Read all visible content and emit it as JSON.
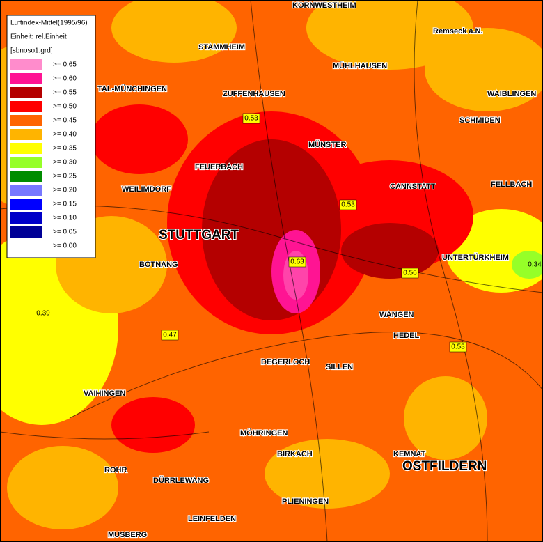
{
  "legend": {
    "title": "Luftindex-Mittel(1995/96)",
    "unit": "Einheit: rel.Einheit",
    "file": "[sbnoso1.grd]",
    "entries": [
      {
        "label": ">= 0.65",
        "color": "#ff8ccc"
      },
      {
        "label": ">= 0.60",
        "color": "#ff1493"
      },
      {
        "label": ">= 0.55",
        "color": "#b40000"
      },
      {
        "label": ">= 0.50",
        "color": "#ff0000"
      },
      {
        "label": ">= 0.45",
        "color": "#ff6400"
      },
      {
        "label": ">= 0.40",
        "color": "#ffb400"
      },
      {
        "label": ">= 0.35",
        "color": "#ffff00"
      },
      {
        "label": ">= 0.30",
        "color": "#96ff28"
      },
      {
        "label": ">= 0.25",
        "color": "#008c00"
      },
      {
        "label": ">= 0.20",
        "color": "#7878ff"
      },
      {
        "label": ">= 0.15",
        "color": "#0000ff"
      },
      {
        "label": ">= 0.10",
        "color": "#0000c8"
      },
      {
        "label": ">= 0.05",
        "color": "#000096"
      },
      {
        "label": ">= 0.00",
        "color": "#ffffff"
      }
    ]
  },
  "value_labels": [
    "0.53",
    "0.53",
    "0.63",
    "0.56",
    "0.53",
    "0.47",
    "0.39",
    "0.34"
  ],
  "places": [
    "KORNWESTHEIM",
    "STAMMHEIM",
    "MÜHLHAUSEN",
    "TAL-MÜNCHINGEN",
    "ZUFFENHAUSEN",
    "WAIBLINGEN",
    "FEUERBACH",
    "WEILIMDORF",
    "STUTTGART",
    "CANNSTATT",
    "FELLBACH",
    "UNTERTÜRKHEIM",
    "BOTNANG",
    "VAIHINGEN",
    "DEGERLOCH",
    "WANGEN",
    "MÖHRINGEN",
    "BIRKACH",
    "OSTFILDERN",
    "PLIENINGEN",
    "MÜNSTER",
    "ROHR",
    "DÜRRLEWANG",
    "LEINFELDEN",
    "MUSBERG",
    "Remseck a.N.",
    "HEDEL",
    "SILLEN",
    "KEMNAT",
    "SCHMIDEN"
  ]
}
